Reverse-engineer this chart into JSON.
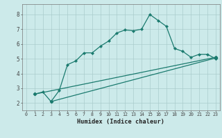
{
  "xlabel": "Humidex (Indice chaleur)",
  "background_color": "#cceaea",
  "line_color": "#1a7a6e",
  "grid_color": "#aacccc",
  "xlim": [
    -0.5,
    23.5
  ],
  "ylim": [
    1.5,
    8.7
  ],
  "xticks": [
    0,
    1,
    2,
    3,
    4,
    5,
    6,
    7,
    8,
    9,
    10,
    11,
    12,
    13,
    14,
    15,
    16,
    17,
    18,
    19,
    20,
    21,
    22,
    23
  ],
  "yticks": [
    2,
    3,
    4,
    5,
    6,
    7,
    8
  ],
  "curve1_x": [
    1,
    2,
    3,
    4,
    5,
    6,
    7,
    8,
    9,
    10,
    11,
    12,
    13,
    14,
    15,
    16,
    17,
    18,
    19,
    20,
    21,
    22,
    23
  ],
  "curve1_y": [
    2.6,
    2.75,
    2.1,
    2.85,
    4.6,
    4.85,
    5.4,
    5.4,
    5.85,
    6.2,
    6.75,
    6.95,
    6.9,
    7.0,
    8.0,
    7.6,
    7.2,
    5.7,
    5.5,
    5.1,
    5.3,
    5.3,
    5.0
  ],
  "line2_x": [
    1,
    23
  ],
  "line2_y": [
    2.6,
    5.1
  ],
  "line3_x": [
    3,
    23
  ],
  "line3_y": [
    2.1,
    5.05
  ]
}
